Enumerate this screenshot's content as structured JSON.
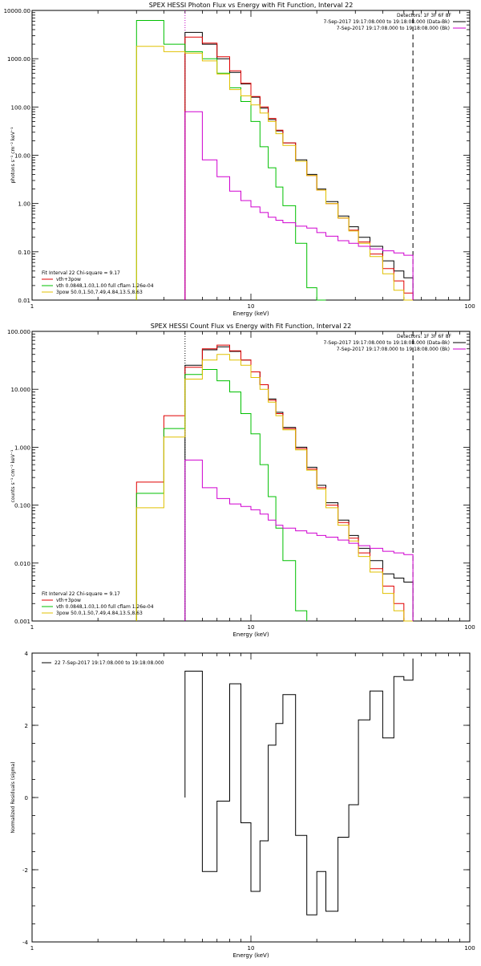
{
  "chart_data": [
    {
      "type": "line",
      "title": "SPEX HESSI Photon Flux vs Energy with Fit Function, Interval 22",
      "xlabel": "Energy (keV)",
      "ylabel": "photons s⁻¹ cm⁻² keV⁻¹",
      "xscale": "log",
      "yscale": "log",
      "xlim": [
        1,
        100
      ],
      "ylim": [
        0.01,
        10000
      ],
      "xticks": [
        "1",
        "10",
        "100"
      ],
      "yticks": [
        "0.01",
        "0.10",
        "1.00",
        "10.00",
        "100.00",
        "1000.00",
        "10000.00"
      ],
      "legend_topright": [
        "Detectors: 1F 3F 6F 8F",
        "7-Sep-2017 19:17:08.000 to 19:18:08.000 (Data-Bk)",
        "7-Sep-2017 19:17:08.000 to 19:18:08.000 (Bk)"
      ],
      "legend_bottomleft": [
        "Fit Interval 22   Chi-square = 9.17",
        "vth+3pow",
        "vth 0.0848,1.03,1.00  full cflam 1.26e-04",
        "3pow 50.0,1.50,7.49,4.84,13.5,8.63"
      ],
      "vlines": [
        {
          "x": 5.0,
          "style": "dotted",
          "color": "#c000c0"
        },
        {
          "x": 55.0,
          "style": "dashed",
          "color": "#000000"
        }
      ],
      "edges": [
        3,
        4,
        5,
        6,
        7,
        8,
        9,
        10,
        11,
        12,
        13,
        14,
        16,
        18,
        20,
        22,
        25,
        28,
        31,
        35,
        40,
        45,
        50,
        55
      ],
      "series": [
        {
          "name": "Data-Bk",
          "color": "#000000",
          "values": [
            null,
            null,
            3500,
            2000,
            1000,
            520,
            300,
            160,
            95,
            55,
            32,
            18,
            8,
            4,
            2,
            1.1,
            0.55,
            0.33,
            0.2,
            0.13,
            0.065,
            0.04,
            0.029
          ]
        },
        {
          "name": "vth+3pow",
          "color": "#e00000",
          "values": [
            null,
            null,
            2800,
            2100,
            1100,
            560,
            310,
            165,
            100,
            58,
            33,
            18,
            7.5,
            3.8,
            1.9,
            1.0,
            0.5,
            0.28,
            0.16,
            0.09,
            0.045,
            0.025,
            0.014
          ]
        },
        {
          "name": "vth 0.0848,1.03,1.00  full cflam 1.26e-04",
          "color": "#00c000",
          "values": [
            6200,
            2000,
            1400,
            1000,
            500,
            250,
            130,
            50,
            15,
            5.5,
            2.2,
            0.9,
            0.15,
            0.018,
            0.003,
            null,
            null,
            null,
            null,
            null,
            null,
            null,
            null
          ]
        },
        {
          "name": "3pow 50.0,1.50,7.49,4.84,13.5,8.63",
          "color": "#e0c000",
          "values": [
            1800,
            1400,
            1300,
            900,
            480,
            230,
            170,
            110,
            75,
            50,
            28,
            16,
            7.5,
            3.8,
            1.9,
            1.0,
            0.5,
            0.27,
            0.15,
            0.08,
            0.035,
            0.016,
            0.008
          ]
        },
        {
          "name": "Bk",
          "color": "#d000d0",
          "values": [
            null,
            null,
            80,
            8,
            3.6,
            1.8,
            1.15,
            0.85,
            0.65,
            0.52,
            0.45,
            0.4,
            0.34,
            0.31,
            0.25,
            0.21,
            0.17,
            0.15,
            0.13,
            0.115,
            0.105,
            0.095,
            0.085
          ]
        }
      ]
    },
    {
      "type": "line",
      "title": "SPEX HESSI Count Flux vs Energy with Fit Function, Interval 22",
      "xlabel": "Energy (keV)",
      "ylabel": "counts s⁻¹ cm⁻² keV⁻¹",
      "xscale": "log",
      "yscale": "log",
      "xlim": [
        1,
        100
      ],
      "ylim": [
        0.001,
        100
      ],
      "xticks": [
        "1",
        "10",
        "100"
      ],
      "yticks": [
        "0.001",
        "0.010",
        "0.100",
        "1.000",
        "10.000",
        "100.000"
      ],
      "legend_topright": [
        "Detectors: 1F 3F 6F 8F",
        "7-Sep-2017 19:17:08.000 to 19:18:08.000 (Data-Bk)",
        "7-Sep-2017 19:17:08.000 to 19:18:08.000 (Bk)"
      ],
      "legend_bottomleft": [
        "Fit Interval 22   Chi-square = 9.17",
        "vth+3pow",
        "vth 0.0848,1.03,1.00  full cflam 1.26e-04",
        "3pow 50.0,1.50,7.49,4.84,13.5,8.63"
      ],
      "vlines": [
        {
          "x": 5.0,
          "style": "dotted",
          "color": "#000000"
        },
        {
          "x": 55.0,
          "style": "dashed",
          "color": "#000000"
        }
      ],
      "edges": [
        3,
        4,
        5,
        6,
        7,
        8,
        9,
        10,
        11,
        12,
        13,
        14,
        16,
        18,
        20,
        22,
        25,
        28,
        31,
        35,
        40,
        45,
        50,
        55
      ],
      "series": [
        {
          "name": "Data-Bk",
          "color": "#000000",
          "values": [
            null,
            null,
            26,
            48,
            54,
            45,
            32,
            20,
            12,
            6.8,
            4.0,
            2.2,
            1.0,
            0.45,
            0.22,
            0.11,
            0.055,
            0.03,
            0.018,
            0.011,
            0.0065,
            0.0055,
            0.0047
          ]
        },
        {
          "name": "vth+3pow",
          "color": "#e00000",
          "values": [
            0.25,
            3.5,
            24,
            50,
            58,
            46,
            32,
            20,
            12,
            6.5,
            3.8,
            2.1,
            0.95,
            0.42,
            0.2,
            0.1,
            0.05,
            0.027,
            0.015,
            0.008,
            0.004,
            0.002,
            0.001
          ]
        },
        {
          "name": "vth 0.0848,1.03,1.00  full cflam 1.26e-04",
          "color": "#00c000",
          "values": [
            0.16,
            2.1,
            18,
            22,
            14,
            9,
            3.8,
            1.7,
            0.5,
            0.14,
            0.04,
            0.011,
            0.0015,
            null,
            null,
            null,
            null,
            null,
            null,
            null,
            null,
            null,
            null
          ]
        },
        {
          "name": "3pow 50.0,1.50,7.49,4.84,13.5,8.63",
          "color": "#e0c000",
          "values": [
            0.09,
            1.5,
            15,
            32,
            40,
            32,
            26,
            16,
            10,
            6,
            3.5,
            2.0,
            0.9,
            0.4,
            0.19,
            0.09,
            0.045,
            0.024,
            0.013,
            0.007,
            0.003,
            0.0015,
            0.0008
          ]
        },
        {
          "name": "Bk",
          "color": "#d000d0",
          "values": [
            null,
            null,
            0.6,
            0.2,
            0.13,
            0.105,
            0.095,
            0.083,
            0.07,
            0.055,
            0.045,
            0.04,
            0.036,
            0.033,
            0.03,
            0.028,
            0.025,
            0.022,
            0.02,
            0.018,
            0.016,
            0.015,
            0.014
          ]
        }
      ]
    },
    {
      "type": "line",
      "title": "",
      "xlabel": "Energy (keV)",
      "ylabel": "Normalized Residuals (sigma)",
      "xscale": "log",
      "yscale": "linear",
      "xlim": [
        1,
        100
      ],
      "ylim": [
        -4,
        4
      ],
      "xticks": [
        "1",
        "10",
        "100"
      ],
      "yticks": [
        "-4",
        "-2",
        "0",
        "2",
        "4"
      ],
      "legend": "22  7-Sep-2017 19:17:08.000 to 19:18:08.000",
      "edges": [
        5,
        6,
        7,
        8,
        9,
        10,
        11,
        12,
        13,
        14,
        16,
        18,
        20,
        22,
        25,
        28,
        31,
        35,
        40,
        45,
        50,
        55
      ],
      "series": [
        {
          "name": "22  7-Sep-2017 19:17:08.000 to 19:18:08.000",
          "color": "#000000",
          "values": [
            3.5,
            -2.05,
            -0.1,
            3.15,
            -0.7,
            -2.6,
            -1.2,
            1.45,
            2.05,
            2.85,
            -1.05,
            -3.25,
            -2.05,
            -3.15,
            -1.1,
            -0.2,
            2.15,
            2.95,
            1.65,
            3.35,
            3.25,
            3.85
          ]
        }
      ]
    }
  ]
}
